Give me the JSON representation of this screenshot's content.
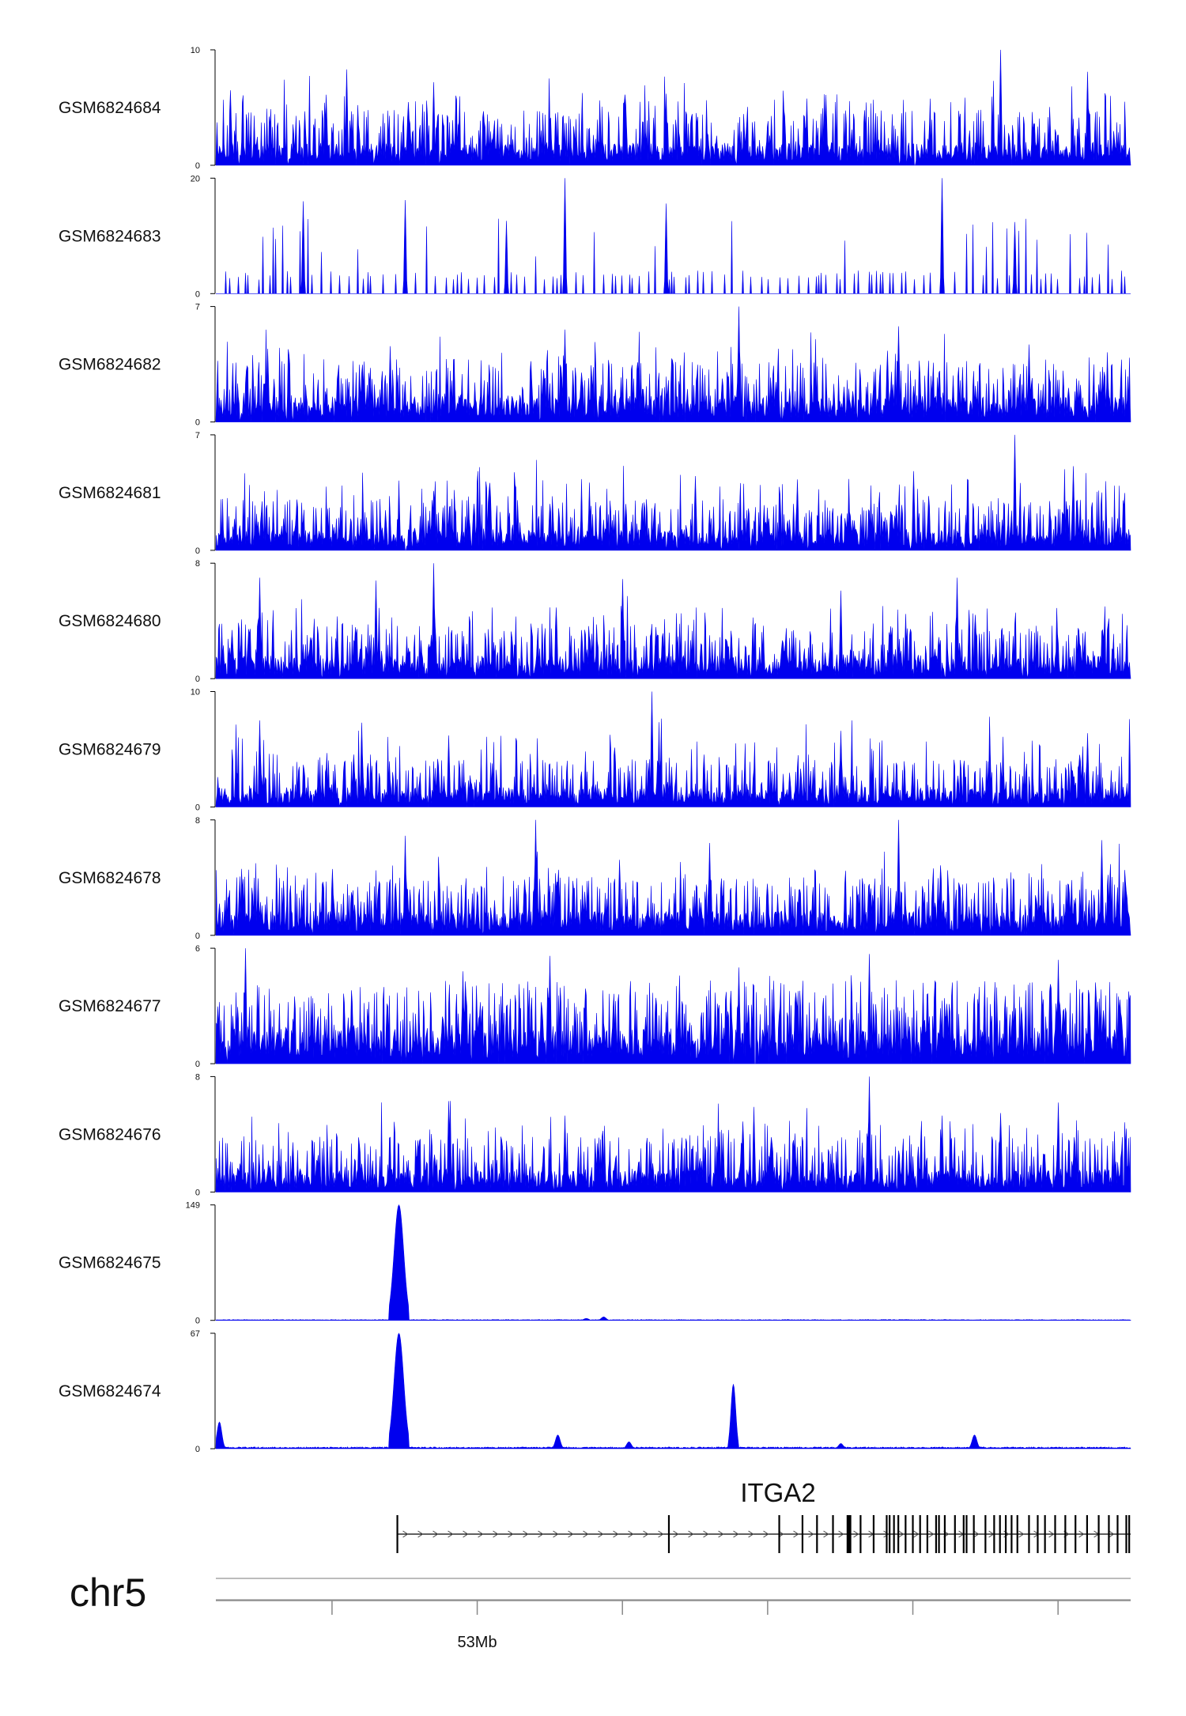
{
  "chart_data": {
    "type": "area",
    "title": "",
    "chromosome": "chr5",
    "colors": {
      "signal": "#0000ee",
      "axis": "#000000",
      "gene": "#000000"
    },
    "x_axis": {
      "unit": "Mb",
      "range": [
        52.82,
        53.45
      ],
      "ticks": [
        52.9,
        53.0,
        53.1,
        53.2,
        53.3,
        53.4
      ],
      "labeled_ticks": [
        {
          "value": 53.0,
          "label": "53Mb"
        }
      ]
    },
    "tracks": [
      {
        "name": "GSM6824684",
        "ymin": 0,
        "ymax": 10,
        "ymin_label": "0",
        "ymax_label": "10",
        "profile": "noisy",
        "baseline": 2.0,
        "peaks": [
          [
            53.36,
            10.0
          ],
          [
            52.91,
            8.3
          ],
          [
            53.42,
            8.1
          ],
          [
            52.97,
            7.2
          ],
          [
            52.83,
            6.5
          ],
          [
            53.13,
            6.2
          ]
        ]
      },
      {
        "name": "GSM6824683",
        "ymin": 0,
        "ymax": 20,
        "ymin_label": "0",
        "ymax_label": "20",
        "profile": "sparse",
        "baseline": 0.6,
        "peaks": [
          [
            53.06,
            20.0
          ],
          [
            53.32,
            20.0
          ],
          [
            52.95,
            16.2
          ],
          [
            52.88,
            16.0
          ],
          [
            53.13,
            15.6
          ],
          [
            53.02,
            12.6
          ],
          [
            53.37,
            12.4
          ]
        ]
      },
      {
        "name": "GSM6824682",
        "ymin": 0,
        "ymax": 7,
        "ymin_label": "0",
        "ymax_label": "7",
        "profile": "noisy",
        "baseline": 1.6,
        "peaks": [
          [
            53.18,
            7.0
          ],
          [
            53.29,
            5.8
          ],
          [
            53.06,
            5.6
          ],
          [
            52.94,
            4.6
          ],
          [
            53.38,
            4.7
          ],
          [
            52.87,
            4.1
          ]
        ]
      },
      {
        "name": "GSM6824681",
        "ymin": 0,
        "ymax": 7,
        "ymin_label": "0",
        "ymax_label": "7",
        "profile": "noisy",
        "baseline": 1.3,
        "peaks": [
          [
            53.37,
            7.0
          ],
          [
            53.15,
            4.5
          ],
          [
            53.3,
            4.8
          ],
          [
            53.41,
            5.1
          ],
          [
            53.22,
            4.3
          ],
          [
            52.97,
            3.6
          ]
        ]
      },
      {
        "name": "GSM6824680",
        "ymin": 0,
        "ymax": 8,
        "ymin_label": "0",
        "ymax_label": "8",
        "profile": "noisy",
        "baseline": 1.6,
        "peaks": [
          [
            52.97,
            8.0
          ],
          [
            53.33,
            7.0
          ],
          [
            52.85,
            7.0
          ],
          [
            53.1,
            6.9
          ],
          [
            53.25,
            6.1
          ],
          [
            52.93,
            6.8
          ]
        ]
      },
      {
        "name": "GSM6824679",
        "ymin": 0,
        "ymax": 10,
        "ymin_label": "0",
        "ymax_label": "10",
        "profile": "noisy",
        "baseline": 1.7,
        "peaks": [
          [
            53.12,
            10.0
          ],
          [
            52.85,
            7.5
          ],
          [
            52.92,
            7.3
          ],
          [
            53.25,
            6.6
          ],
          [
            53.42,
            6.4
          ],
          [
            52.98,
            6.2
          ]
        ]
      },
      {
        "name": "GSM6824678",
        "ymin": 0,
        "ymax": 8,
        "ymin_label": "0",
        "ymax_label": "8",
        "profile": "noisy",
        "baseline": 1.7,
        "peaks": [
          [
            53.04,
            8.0
          ],
          [
            53.29,
            8.0
          ],
          [
            52.95,
            6.9
          ],
          [
            53.43,
            6.6
          ],
          [
            53.16,
            6.4
          ],
          [
            52.9,
            4.6
          ]
        ]
      },
      {
        "name": "GSM6824677",
        "ymin": 0,
        "ymax": 6,
        "ymin_label": "0",
        "ymax_label": "6",
        "profile": "noisy",
        "baseline": 1.8,
        "peaks": [
          [
            53.27,
            5.7
          ],
          [
            52.84,
            6.0
          ],
          [
            53.05,
            5.6
          ],
          [
            53.4,
            5.4
          ],
          [
            52.99,
            4.8
          ],
          [
            53.18,
            5.0
          ]
        ]
      },
      {
        "name": "GSM6824676",
        "ymin": 0,
        "ymax": 8,
        "ymin_label": "0",
        "ymax_label": "8",
        "profile": "noisy",
        "baseline": 1.6,
        "peaks": [
          [
            53.27,
            8.0
          ],
          [
            52.98,
            6.3
          ],
          [
            53.19,
            5.9
          ],
          [
            53.4,
            6.2
          ],
          [
            53.06,
            5.3
          ],
          [
            53.32,
            5.3
          ]
        ]
      },
      {
        "name": "GSM6824675",
        "ymin": 0,
        "ymax": 149,
        "ymin_label": "0",
        "ymax_label": "149",
        "profile": "flat",
        "baseline": 0.8,
        "peaks": [
          [
            52.946,
            149
          ],
          [
            53.087,
            4.5
          ],
          [
            53.075,
            2.5
          ]
        ]
      },
      {
        "name": "GSM6824674",
        "ymin": 0,
        "ymax": 67,
        "ymin_label": "0",
        "ymax_label": "67",
        "profile": "flat",
        "baseline": 0.8,
        "peaks": [
          [
            52.946,
            67
          ],
          [
            52.822,
            15.5
          ],
          [
            53.176,
            37.5
          ],
          [
            53.055,
            8.0
          ],
          [
            53.342,
            8.0
          ],
          [
            53.104,
            4.0
          ],
          [
            53.25,
            3.0
          ]
        ]
      }
    ],
    "gene": {
      "name": "ITGA2",
      "strand": "+",
      "start": 52.945,
      "end": 53.45,
      "exons": [
        52.945,
        53.132,
        53.208,
        53.224,
        53.234,
        53.245,
        53.255,
        53.256,
        53.257,
        53.264,
        53.273,
        53.282,
        53.284,
        53.287,
        53.29,
        53.295,
        53.3,
        53.305,
        53.31,
        53.316,
        53.318,
        53.322,
        53.329,
        53.335,
        53.337,
        53.342,
        53.35,
        53.356,
        53.36,
        53.364,
        53.368,
        53.372,
        53.38,
        53.386,
        53.391,
        53.398,
        53.405,
        53.412,
        53.42,
        53.428,
        53.435,
        53.441,
        53.447,
        53.449
      ]
    }
  }
}
